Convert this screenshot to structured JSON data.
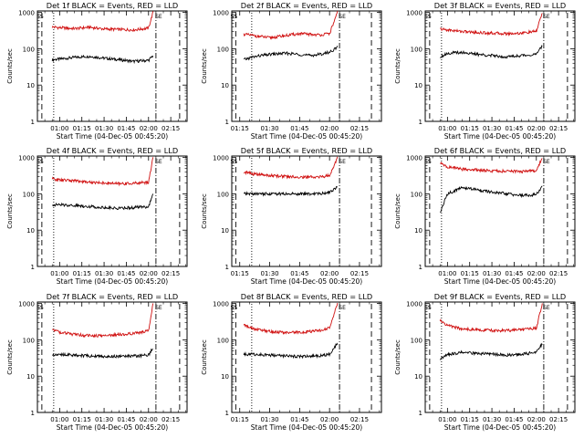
{
  "shared": {
    "ylabel": "Counts/sec",
    "xlabel": "Start Time (04-Dec-05 00:45:20)",
    "yticks": [
      "1",
      "10",
      "100",
      "1000"
    ],
    "xticks": [
      "01:00",
      "01:15",
      "01:30",
      "01:45",
      "02:00",
      "02:15"
    ],
    "marker_left": "SS",
    "marker_right": "SE",
    "colors": {
      "events": "#000000",
      "lld": "#d01010"
    }
  },
  "chart_data": [
    {
      "type": "line",
      "title": "Det 1f BLACK = Events, RED = LLD",
      "xlabel": "Start Time (04-Dec-05 00:45:20)",
      "ylabel": "Counts/sec",
      "yscale": "log",
      "ylim": [
        1,
        1100
      ],
      "x": [
        "00:55",
        "01:00",
        "01:10",
        "01:20",
        "01:30",
        "01:40",
        "01:50",
        "02:00",
        "02:03"
      ],
      "series": [
        {
          "name": "BLACK = Events",
          "values": [
            50,
            52,
            58,
            62,
            55,
            50,
            45,
            48,
            65
          ]
        },
        {
          "name": "RED = LLD",
          "values": [
            400,
            380,
            360,
            390,
            350,
            340,
            330,
            370,
            1000
          ]
        }
      ]
    },
    {
      "type": "line",
      "title": "Det 2f BLACK = Events, RED = LLD",
      "xlabel": "Start Time (04-Dec-05 00:45:20)",
      "ylabel": "Counts/sec",
      "yscale": "log",
      "ylim": [
        1,
        1100
      ],
      "x": [
        "01:17",
        "01:22",
        "01:30",
        "01:38",
        "01:45",
        "01:50",
        "01:55",
        "02:00",
        "02:04"
      ],
      "series": [
        {
          "name": "BLACK = Events",
          "values": [
            50,
            60,
            70,
            75,
            70,
            65,
            70,
            80,
            110
          ]
        },
        {
          "name": "RED = LLD",
          "values": [
            250,
            230,
            200,
            230,
            260,
            250,
            240,
            260,
            1000
          ]
        }
      ]
    },
    {
      "type": "line",
      "title": "Det 3f BLACK = Events, RED = LLD",
      "xlabel": "Start Time (04-Dec-05 00:45:20)",
      "ylabel": "Counts/sec",
      "yscale": "log",
      "ylim": [
        1,
        1100
      ],
      "x": [
        "00:55",
        "01:00",
        "01:10",
        "01:20",
        "01:30",
        "01:40",
        "01:50",
        "02:00",
        "02:04"
      ],
      "series": [
        {
          "name": "BLACK = Events",
          "values": [
            60,
            75,
            80,
            70,
            65,
            60,
            65,
            70,
            120
          ]
        },
        {
          "name": "RED = LLD",
          "values": [
            350,
            330,
            300,
            280,
            270,
            260,
            270,
            300,
            1000
          ]
        }
      ]
    },
    {
      "type": "line",
      "title": "Det 4f BLACK = Events, RED = LLD",
      "xlabel": "Start Time (04-Dec-05 00:45:20)",
      "ylabel": "Counts/sec",
      "yscale": "log",
      "ylim": [
        1,
        1100
      ],
      "x": [
        "00:55",
        "01:00",
        "01:10",
        "01:20",
        "01:30",
        "01:40",
        "01:50",
        "02:00",
        "02:03"
      ],
      "series": [
        {
          "name": "BLACK = Events",
          "values": [
            50,
            50,
            48,
            45,
            42,
            40,
            42,
            45,
            95
          ]
        },
        {
          "name": "RED = LLD",
          "values": [
            260,
            240,
            230,
            210,
            200,
            190,
            195,
            210,
            1000
          ]
        }
      ]
    },
    {
      "type": "line",
      "title": "Det 5f BLACK = Events, RED = LLD",
      "xlabel": "Start Time (04-Dec-05 00:45:20)",
      "ylabel": "Counts/sec",
      "yscale": "log",
      "ylim": [
        1,
        1100
      ],
      "x": [
        "01:17",
        "01:22",
        "01:30",
        "01:38",
        "01:45",
        "01:50",
        "01:55",
        "02:00",
        "02:04"
      ],
      "series": [
        {
          "name": "BLACK = Events",
          "values": [
            100,
            100,
            100,
            100,
            100,
            100,
            100,
            110,
            160
          ]
        },
        {
          "name": "RED = LLD",
          "values": [
            400,
            350,
            320,
            300,
            290,
            290,
            290,
            320,
            1000
          ]
        }
      ]
    },
    {
      "type": "line",
      "title": "Det 6f BLACK = Events, RED = LLD",
      "xlabel": "Start Time (04-Dec-05 00:45:20)",
      "ylabel": "Counts/sec",
      "yscale": "log",
      "ylim": [
        1,
        1100
      ],
      "x": [
        "00:55",
        "01:00",
        "01:10",
        "01:20",
        "01:30",
        "01:40",
        "01:50",
        "02:00",
        "02:04"
      ],
      "series": [
        {
          "name": "BLACK = Events",
          "values": [
            30,
            100,
            150,
            130,
            110,
            100,
            90,
            95,
            160
          ]
        },
        {
          "name": "RED = LLD",
          "values": [
            700,
            550,
            480,
            450,
            430,
            420,
            410,
            430,
            1000
          ]
        }
      ]
    },
    {
      "type": "line",
      "title": "Det 7f BLACK = Events, RED = LLD",
      "xlabel": "Start Time (04-Dec-05 00:45:20)",
      "ylabel": "Counts/sec",
      "yscale": "log",
      "ylim": [
        1,
        1100
      ],
      "x": [
        "00:55",
        "01:00",
        "01:10",
        "01:20",
        "01:30",
        "01:40",
        "01:50",
        "02:00",
        "02:03"
      ],
      "series": [
        {
          "name": "BLACK = Events",
          "values": [
            40,
            40,
            38,
            36,
            35,
            35,
            36,
            38,
            60
          ]
        },
        {
          "name": "RED = LLD",
          "values": [
            200,
            160,
            140,
            130,
            130,
            140,
            150,
            180,
            1000
          ]
        }
      ]
    },
    {
      "type": "line",
      "title": "Det 8f BLACK = Events, RED = LLD",
      "xlabel": "Start Time (04-Dec-05 00:45:20)",
      "ylabel": "Counts/sec",
      "yscale": "log",
      "ylim": [
        1,
        1100
      ],
      "x": [
        "01:17",
        "01:22",
        "01:30",
        "01:38",
        "01:45",
        "01:50",
        "01:55",
        "02:00",
        "02:04"
      ],
      "series": [
        {
          "name": "BLACK = Events",
          "values": [
            40,
            40,
            38,
            36,
            35,
            35,
            36,
            40,
            80
          ]
        },
        {
          "name": "RED = LLD",
          "values": [
            250,
            200,
            170,
            160,
            160,
            170,
            180,
            210,
            1000
          ]
        }
      ]
    },
    {
      "type": "line",
      "title": "Det 9f BLACK = Events, RED = LLD",
      "xlabel": "Start Time (04-Dec-05 00:45:20)",
      "ylabel": "Counts/sec",
      "yscale": "log",
      "ylim": [
        1,
        1100
      ],
      "x": [
        "00:55",
        "01:00",
        "01:10",
        "01:20",
        "01:30",
        "01:40",
        "01:50",
        "02:00",
        "02:04"
      ],
      "series": [
        {
          "name": "BLACK = Events",
          "values": [
            30,
            40,
            45,
            42,
            40,
            38,
            40,
            45,
            80
          ]
        },
        {
          "name": "RED = LLD",
          "values": [
            350,
            250,
            200,
            190,
            180,
            180,
            190,
            210,
            1000
          ]
        }
      ]
    }
  ]
}
